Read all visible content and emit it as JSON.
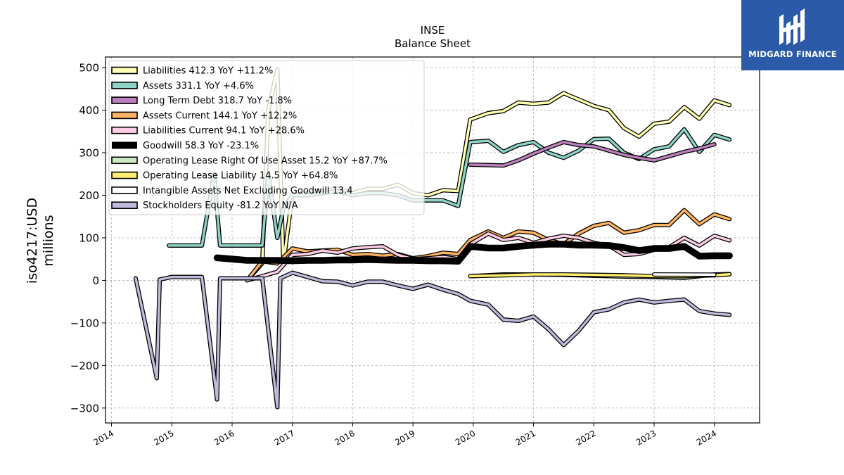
{
  "header": {
    "title": "INSE",
    "subtitle": "Balance  Sheet"
  },
  "logo": {
    "text": "MIDGARD FINANCE"
  },
  "chart_data": {
    "type": "line",
    "title": "INSE",
    "subtitle": "Balance  Sheet",
    "ylabel_line1": "iso4217:USD",
    "ylabel_line2": "millions",
    "xlim": [
      2013.9,
      2024.75
    ],
    "ylim": [
      -335,
      525
    ],
    "yticks": [
      -300,
      -200,
      -100,
      0,
      100,
      200,
      300,
      400,
      500
    ],
    "ytick_labels": [
      "−300",
      "−200",
      "−100",
      "0",
      "100",
      "200",
      "300",
      "400",
      "500"
    ],
    "xticks": [
      2014,
      2015,
      2016,
      2017,
      2018,
      2019,
      2020,
      2021,
      2022,
      2023,
      2024
    ],
    "xtick_labels": [
      "2014",
      "2015",
      "2016",
      "2017",
      "2018",
      "2019",
      "2020",
      "2021",
      "2022",
      "2023",
      "2024"
    ],
    "grid": true,
    "legend_position": "top-left",
    "series": [
      {
        "name": "Liabilities  412.3 YoY +11.2%",
        "color": "#ffffb3",
        "width": 3.5,
        "points": [
          [
            2016.25,
            0
          ],
          [
            2016.5,
            40
          ],
          [
            2016.6,
            400
          ],
          [
            2016.75,
            495
          ],
          [
            2016.85,
            40
          ],
          [
            2017.0,
            200
          ],
          [
            2017.25,
            205
          ],
          [
            2017.5,
            210
          ],
          [
            2017.75,
            215
          ],
          [
            2018.0,
            205
          ],
          [
            2018.25,
            215
          ],
          [
            2018.5,
            215
          ],
          [
            2018.75,
            225
          ],
          [
            2019.0,
            205
          ],
          [
            2019.25,
            200
          ],
          [
            2019.5,
            212
          ],
          [
            2019.75,
            210
          ],
          [
            2019.95,
            378
          ],
          [
            2020.25,
            393
          ],
          [
            2020.5,
            398
          ],
          [
            2020.75,
            418
          ],
          [
            2021.0,
            415
          ],
          [
            2021.25,
            418
          ],
          [
            2021.5,
            440
          ],
          [
            2021.75,
            425
          ],
          [
            2022.0,
            410
          ],
          [
            2022.25,
            400
          ],
          [
            2022.5,
            358
          ],
          [
            2022.75,
            338
          ],
          [
            2023.0,
            368
          ],
          [
            2023.25,
            373
          ],
          [
            2023.5,
            407
          ],
          [
            2023.75,
            380
          ],
          [
            2024.0,
            423
          ],
          [
            2024.25,
            412
          ]
        ]
      },
      {
        "name": "Assets  331.1 YoY +4.6%",
        "color": "#8dd3c7",
        "width": 3.5,
        "points": [
          [
            2014.95,
            82
          ],
          [
            2015.25,
            82
          ],
          [
            2015.5,
            82
          ],
          [
            2015.7,
            250
          ],
          [
            2015.8,
            82
          ],
          [
            2016.0,
            82
          ],
          [
            2016.25,
            82
          ],
          [
            2016.5,
            82
          ],
          [
            2016.6,
            250
          ],
          [
            2016.75,
            100
          ],
          [
            2016.85,
            170
          ],
          [
            2017.0,
            200
          ],
          [
            2017.25,
            200
          ],
          [
            2017.5,
            205
          ],
          [
            2017.75,
            210
          ],
          [
            2018.0,
            200
          ],
          [
            2018.25,
            205
          ],
          [
            2018.5,
            205
          ],
          [
            2018.75,
            200
          ],
          [
            2019.0,
            188
          ],
          [
            2019.25,
            188
          ],
          [
            2019.5,
            188
          ],
          [
            2019.75,
            175
          ],
          [
            2019.95,
            325
          ],
          [
            2020.25,
            328
          ],
          [
            2020.5,
            302
          ],
          [
            2020.75,
            318
          ],
          [
            2021.0,
            325
          ],
          [
            2021.25,
            300
          ],
          [
            2021.5,
            288
          ],
          [
            2021.75,
            305
          ],
          [
            2022.0,
            332
          ],
          [
            2022.25,
            333
          ],
          [
            2022.5,
            300
          ],
          [
            2022.75,
            285
          ],
          [
            2023.0,
            308
          ],
          [
            2023.25,
            315
          ],
          [
            2023.5,
            355
          ],
          [
            2023.75,
            302
          ],
          [
            2024.0,
            342
          ],
          [
            2024.25,
            331
          ]
        ]
      },
      {
        "name": "Long Term Debt  318.7 YoY -1.8%",
        "color": "#bc80bd",
        "width": 3.5,
        "points": [
          [
            2019.95,
            272
          ],
          [
            2020.25,
            271
          ],
          [
            2020.5,
            270
          ],
          [
            2020.75,
            282
          ],
          [
            2021.0,
            298
          ],
          [
            2021.25,
            312
          ],
          [
            2021.5,
            325
          ],
          [
            2021.75,
            318
          ],
          [
            2022.0,
            315
          ],
          [
            2022.25,
            305
          ],
          [
            2022.5,
            295
          ],
          [
            2022.75,
            288
          ],
          [
            2023.0,
            282
          ],
          [
            2023.25,
            292
          ],
          [
            2023.5,
            302
          ],
          [
            2023.75,
            310
          ],
          [
            2024.0,
            320
          ]
        ]
      },
      {
        "name": "Assets Current  144.1 YoY +12.2%",
        "color": "#fdb462",
        "width": 3.5,
        "points": [
          [
            2016.25,
            0
          ],
          [
            2016.5,
            45
          ],
          [
            2016.75,
            40
          ],
          [
            2017.0,
            75
          ],
          [
            2017.25,
            68
          ],
          [
            2017.5,
            70
          ],
          [
            2017.75,
            72
          ],
          [
            2018.0,
            60
          ],
          [
            2018.25,
            62
          ],
          [
            2018.5,
            58
          ],
          [
            2018.75,
            62
          ],
          [
            2019.0,
            52
          ],
          [
            2019.25,
            57
          ],
          [
            2019.5,
            65
          ],
          [
            2019.75,
            62
          ],
          [
            2019.95,
            95
          ],
          [
            2020.25,
            115
          ],
          [
            2020.5,
            100
          ],
          [
            2020.75,
            115
          ],
          [
            2021.0,
            112
          ],
          [
            2021.25,
            95
          ],
          [
            2021.5,
            85
          ],
          [
            2021.75,
            110
          ],
          [
            2022.0,
            128
          ],
          [
            2022.25,
            135
          ],
          [
            2022.5,
            112
          ],
          [
            2022.75,
            118
          ],
          [
            2023.0,
            130
          ],
          [
            2023.25,
            130
          ],
          [
            2023.5,
            165
          ],
          [
            2023.75,
            132
          ],
          [
            2024.0,
            155
          ],
          [
            2024.25,
            144
          ]
        ]
      },
      {
        "name": "Liabilities Current  94.1 YoY +28.6%",
        "color": "#fccde5",
        "width": 3.5,
        "points": [
          [
            2016.25,
            0
          ],
          [
            2016.5,
            10
          ],
          [
            2016.75,
            20
          ],
          [
            2017.0,
            60
          ],
          [
            2017.25,
            62
          ],
          [
            2017.5,
            70
          ],
          [
            2017.75,
            65
          ],
          [
            2018.0,
            75
          ],
          [
            2018.25,
            78
          ],
          [
            2018.5,
            80
          ],
          [
            2018.75,
            60
          ],
          [
            2019.0,
            50
          ],
          [
            2019.25,
            52
          ],
          [
            2019.5,
            55
          ],
          [
            2019.75,
            50
          ],
          [
            2019.95,
            85
          ],
          [
            2020.25,
            110
          ],
          [
            2020.5,
            95
          ],
          [
            2020.75,
            100
          ],
          [
            2021.0,
            88
          ],
          [
            2021.25,
            98
          ],
          [
            2021.5,
            105
          ],
          [
            2021.75,
            100
          ],
          [
            2022.0,
            88
          ],
          [
            2022.25,
            82
          ],
          [
            2022.5,
            60
          ],
          [
            2022.75,
            62
          ],
          [
            2023.0,
            72
          ],
          [
            2023.25,
            78
          ],
          [
            2023.5,
            100
          ],
          [
            2023.75,
            82
          ],
          [
            2024.0,
            105
          ],
          [
            2024.25,
            94
          ]
        ]
      },
      {
        "name": "Goodwill  58.3 YoY -23.1%",
        "color": "#000000",
        "width": 7,
        "points": [
          [
            2015.75,
            53
          ],
          [
            2016.0,
            50
          ],
          [
            2016.25,
            47
          ],
          [
            2016.5,
            47
          ],
          [
            2016.75,
            47
          ],
          [
            2017.0,
            46
          ],
          [
            2017.25,
            47
          ],
          [
            2017.5,
            47
          ],
          [
            2017.75,
            48
          ],
          [
            2018.0,
            48
          ],
          [
            2018.25,
            49
          ],
          [
            2018.5,
            48
          ],
          [
            2018.75,
            47
          ],
          [
            2019.0,
            47
          ],
          [
            2019.25,
            46
          ],
          [
            2019.5,
            46
          ],
          [
            2019.75,
            45
          ],
          [
            2019.95,
            80
          ],
          [
            2020.25,
            76
          ],
          [
            2020.5,
            76
          ],
          [
            2020.75,
            80
          ],
          [
            2021.0,
            83
          ],
          [
            2021.25,
            85
          ],
          [
            2021.5,
            85
          ],
          [
            2021.75,
            83
          ],
          [
            2022.0,
            83
          ],
          [
            2022.25,
            82
          ],
          [
            2022.5,
            77
          ],
          [
            2022.75,
            70
          ],
          [
            2023.0,
            75
          ],
          [
            2023.25,
            75
          ],
          [
            2023.5,
            80
          ],
          [
            2023.75,
            57
          ],
          [
            2024.0,
            58
          ],
          [
            2024.25,
            58
          ]
        ]
      },
      {
        "name": "Operating Lease Right Of Use Asset  15.2 YoY +87.7%",
        "color": "#ccebc5",
        "width": 3.5,
        "points": [
          [
            2019.95,
            10
          ],
          [
            2020.5,
            14
          ],
          [
            2021.0,
            14
          ],
          [
            2021.5,
            13
          ],
          [
            2022.0,
            11
          ],
          [
            2022.5,
            9
          ],
          [
            2023.0,
            8
          ],
          [
            2023.5,
            6
          ],
          [
            2024.0,
            14
          ],
          [
            2024.25,
            15
          ]
        ]
      },
      {
        "name": "Operating Lease Liability  14.5 YoY +64.8%",
        "color": "#ffed6f",
        "width": 3.5,
        "points": [
          [
            2019.95,
            10
          ],
          [
            2020.5,
            12
          ],
          [
            2021.0,
            14
          ],
          [
            2021.5,
            14
          ],
          [
            2022.0,
            13
          ],
          [
            2022.5,
            12
          ],
          [
            2023.0,
            10
          ],
          [
            2023.5,
            10
          ],
          [
            2024.0,
            12
          ],
          [
            2024.25,
            14.5
          ]
        ]
      },
      {
        "name": "Intangible Assets Net Excluding Goodwill  13.4",
        "color": "#ffffff",
        "width": 3.5,
        "points": [
          [
            2023.0,
            14
          ],
          [
            2024.0,
            13.4
          ]
        ]
      },
      {
        "name": "Stockholders Equity  -81.2 YoY N/A",
        "color": "#bebada",
        "width": 3.5,
        "points": [
          [
            2014.4,
            5
          ],
          [
            2014.75,
            -230
          ],
          [
            2014.8,
            2
          ],
          [
            2015.0,
            8
          ],
          [
            2015.25,
            8
          ],
          [
            2015.5,
            8
          ],
          [
            2015.75,
            -280
          ],
          [
            2015.8,
            5
          ],
          [
            2016.0,
            5
          ],
          [
            2016.25,
            5
          ],
          [
            2016.5,
            5
          ],
          [
            2016.75,
            -298
          ],
          [
            2016.8,
            5
          ],
          [
            2017.0,
            18
          ],
          [
            2017.25,
            8
          ],
          [
            2017.5,
            -2
          ],
          [
            2017.75,
            -3
          ],
          [
            2018.0,
            -12
          ],
          [
            2018.25,
            -3
          ],
          [
            2018.5,
            -3
          ],
          [
            2018.75,
            -12
          ],
          [
            2019.0,
            -20
          ],
          [
            2019.25,
            -10
          ],
          [
            2019.5,
            -22
          ],
          [
            2019.75,
            -32
          ],
          [
            2019.95,
            -48
          ],
          [
            2020.25,
            -57
          ],
          [
            2020.5,
            -92
          ],
          [
            2020.75,
            -95
          ],
          [
            2021.0,
            -85
          ],
          [
            2021.25,
            -115
          ],
          [
            2021.5,
            -152
          ],
          [
            2021.75,
            -118
          ],
          [
            2022.0,
            -75
          ],
          [
            2022.25,
            -68
          ],
          [
            2022.5,
            -52
          ],
          [
            2022.75,
            -45
          ],
          [
            2023.0,
            -52
          ],
          [
            2023.25,
            -48
          ],
          [
            2023.5,
            -45
          ],
          [
            2023.75,
            -72
          ],
          [
            2024.0,
            -78
          ],
          [
            2024.25,
            -81
          ]
        ]
      }
    ]
  }
}
